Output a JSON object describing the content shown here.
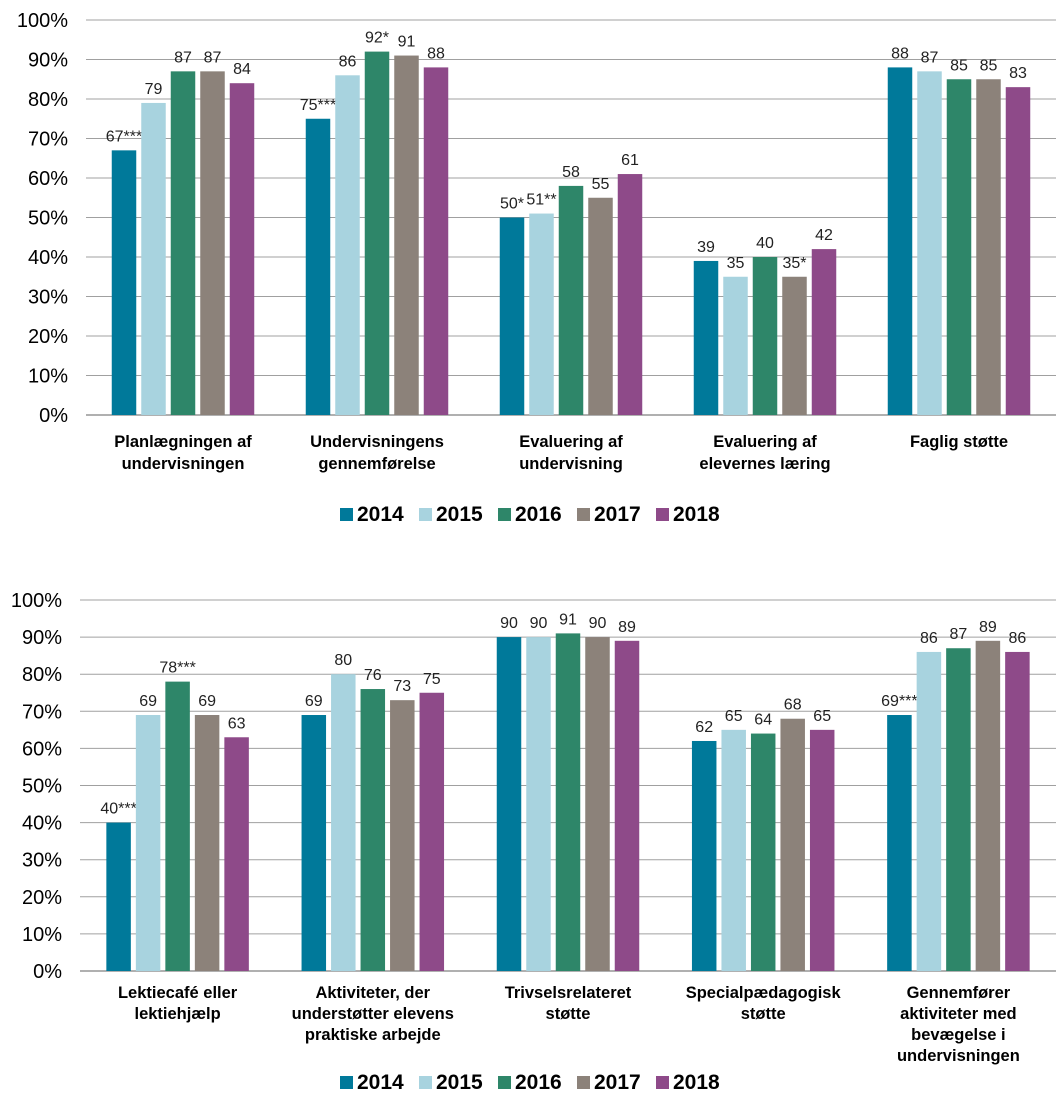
{
  "chart_data": [
    {
      "type": "bar",
      "title": "",
      "xlabel": "",
      "ylabel": "",
      "ylim": [
        0,
        100
      ],
      "y_ticks": [
        "0%",
        "10%",
        "20%",
        "30%",
        "40%",
        "50%",
        "60%",
        "70%",
        "80%",
        "90%",
        "100%"
      ],
      "grid": true,
      "legend_position": "bottom",
      "categories": [
        [
          "Planlægningen af",
          "undervisningen"
        ],
        [
          "Undervisningens",
          "gennemførelse"
        ],
        [
          "Evaluering af",
          "undervisning"
        ],
        [
          "Evaluering af",
          "elevernes læring"
        ],
        [
          "Faglig støtte"
        ]
      ],
      "series": [
        {
          "name": "2014",
          "color": "#00799A",
          "values": [
            67,
            75,
            50,
            39,
            88
          ],
          "labels": [
            "67***",
            "75***",
            "50*",
            "39",
            "88"
          ]
        },
        {
          "name": "2015",
          "color": "#A8D3DF",
          "values": [
            79,
            86,
            51,
            35,
            87
          ],
          "labels": [
            "79",
            "86",
            "51**",
            "35",
            "87"
          ]
        },
        {
          "name": "2016",
          "color": "#2E8669",
          "values": [
            87,
            92,
            58,
            40,
            85
          ],
          "labels": [
            "87",
            "92*",
            "58",
            "40",
            "85"
          ]
        },
        {
          "name": "2017",
          "color": "#8C827A",
          "values": [
            87,
            91,
            55,
            35,
            85
          ],
          "labels": [
            "87",
            "91",
            "55",
            "35*",
            "85"
          ]
        },
        {
          "name": "2018",
          "color": "#8E4A89",
          "values": [
            84,
            88,
            61,
            42,
            83
          ],
          "labels": [
            "84",
            "88",
            "61",
            "42",
            "83"
          ]
        }
      ]
    },
    {
      "type": "bar",
      "title": "",
      "xlabel": "",
      "ylabel": "",
      "ylim": [
        0,
        100
      ],
      "y_ticks": [
        "0%",
        "10%",
        "20%",
        "30%",
        "40%",
        "50%",
        "60%",
        "70%",
        "80%",
        "90%",
        "100%"
      ],
      "grid": true,
      "legend_position": "bottom",
      "categories": [
        [
          "Lektiecafé eller",
          "lektiehjælp"
        ],
        [
          "Aktiviteter, der",
          "understøtter elevens",
          "praktiske arbejde"
        ],
        [
          "Trivselsrelateret",
          "støtte"
        ],
        [
          "Specialpædagogisk",
          "støtte"
        ],
        [
          "Gennemfører",
          "aktiviteter med",
          "bevægelse i",
          "undervisningen"
        ]
      ],
      "series": [
        {
          "name": "2014",
          "color": "#00799A",
          "values": [
            40,
            69,
            90,
            62,
            69
          ],
          "labels": [
            "40***",
            "69",
            "90",
            "62",
            "69***"
          ]
        },
        {
          "name": "2015",
          "color": "#A8D3DF",
          "values": [
            69,
            80,
            90,
            65,
            86
          ],
          "labels": [
            "69",
            "80",
            "90",
            "65",
            "86"
          ]
        },
        {
          "name": "2016",
          "color": "#2E8669",
          "values": [
            78,
            76,
            91,
            64,
            87
          ],
          "labels": [
            "78***",
            "76",
            "91",
            "64",
            "87"
          ]
        },
        {
          "name": "2017",
          "color": "#8C827A",
          "values": [
            69,
            73,
            90,
            68,
            89
          ],
          "labels": [
            "69",
            "73",
            "90",
            "68",
            "89"
          ]
        },
        {
          "name": "2018",
          "color": "#8E4A89",
          "values": [
            63,
            75,
            89,
            65,
            86
          ],
          "labels": [
            "63",
            "75",
            "89",
            "65",
            "86"
          ]
        }
      ]
    }
  ]
}
